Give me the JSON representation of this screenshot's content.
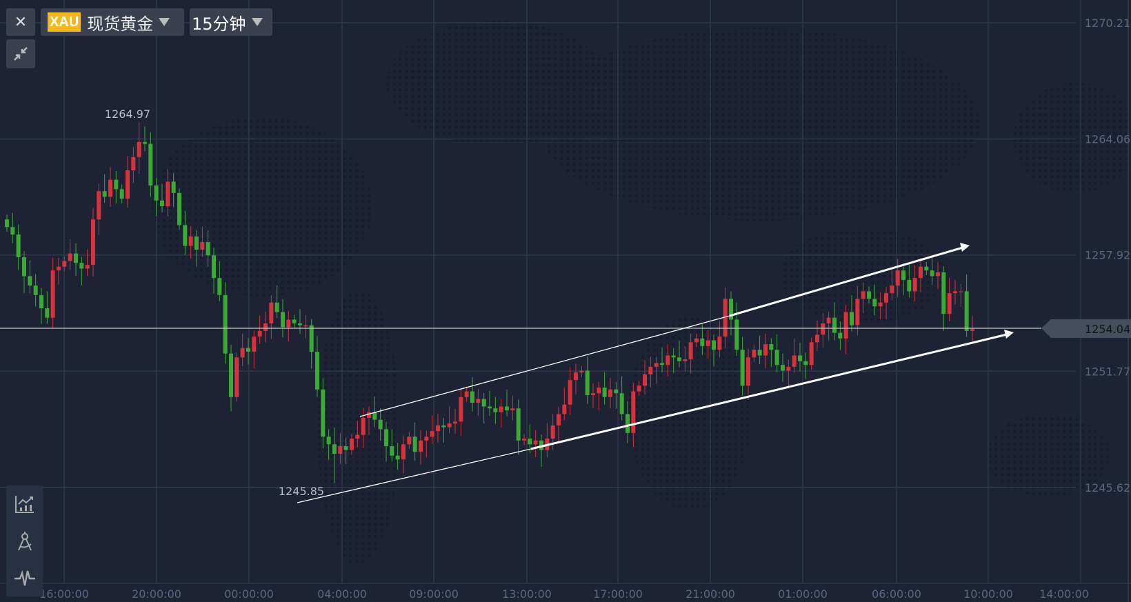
{
  "toolbar": {
    "close_icon": "close-icon",
    "collapse_icon": "collapse-arrows-icon",
    "symbol_code": "XAU",
    "symbol_name": "现货黄金",
    "interval": "15分钟"
  },
  "tools": [
    "indicator-chart-icon",
    "compass-drawing-icon",
    "pulse-wave-icon"
  ],
  "colors": {
    "background": "#1d2335",
    "up": "#d8323c",
    "down": "#3aaa35",
    "grid": "#2f3749",
    "axis_text": "#5d6680"
  },
  "chart_data": {
    "type": "candlestick",
    "title": "",
    "y_ticks": [
      "1270.21",
      "1264.06",
      "1257.92",
      "1251.77",
      "1245.62"
    ],
    "ylim": [
      1243.5,
      1271.4
    ],
    "x_ticks": [
      "16:00:00",
      "20:00:00",
      "00:00:00",
      "04:00:00",
      "09:00:00",
      "13:00:00",
      "17:00:00",
      "21:00:00",
      "01:00:00",
      "06:00:00",
      "10:00:00",
      "14:00:00"
    ],
    "current_price": "1254.04",
    "high_label": "1264.97",
    "low_label": "1245.85",
    "up_color_convention": "red up / green down",
    "closes": [
      1259.4,
      1259.0,
      1257.8,
      1256.8,
      1256.3,
      1255.8,
      1255.1,
      1254.6,
      1257.1,
      1257.3,
      1257.6,
      1258.0,
      1257.5,
      1257.2,
      1257.4,
      1259.8,
      1261.3,
      1261.0,
      1261.9,
      1261.4,
      1260.9,
      1262.4,
      1263.1,
      1263.9,
      1263.8,
      1261.6,
      1260.8,
      1260.5,
      1261.8,
      1261.2,
      1259.5,
      1258.4,
      1258.9,
      1258.2,
      1258.6,
      1257.9,
      1256.7,
      1255.8,
      1252.7,
      1250.4,
      1252.5,
      1253.0,
      1252.8,
      1253.6,
      1253.9,
      1254.3,
      1255.4,
      1254.9,
      1254.1,
      1254.5,
      1254.3,
      1254.2,
      1254.2,
      1252.8,
      1250.8,
      1248.3,
      1247.9,
      1247.4,
      1247.8,
      1247.6,
      1248.2,
      1248.4,
      1249.3,
      1249.6,
      1249.2,
      1248.7,
      1247.8,
      1247.3,
      1247.1,
      1247.9,
      1248.3,
      1247.5,
      1248.1,
      1248.3,
      1248.6,
      1248.9,
      1248.8,
      1249.0,
      1249.1,
      1250.4,
      1250.7,
      1250.1,
      1250.3,
      1249.9,
      1249.8,
      1249.6,
      1249.9,
      1249.7,
      1249.8,
      1248.1,
      1248.2,
      1247.9,
      1248.1,
      1247.6,
      1248.2,
      1248.9,
      1249.5,
      1250.0,
      1251.3,
      1251.7,
      1251.8,
      1250.5,
      1250.6,
      1250.9,
      1250.4,
      1250.8,
      1250.6,
      1249.5,
      1248.5,
      1250.7,
      1251.0,
      1251.6,
      1252.0,
      1252.2,
      1252.1,
      1252.6,
      1252.5,
      1252.3,
      1252.4,
      1253.3,
      1253.5,
      1253.1,
      1253.4,
      1252.9,
      1253.6,
      1255.6,
      1254.5,
      1252.9,
      1251.0,
      1252.5,
      1252.9,
      1252.6,
      1253.2,
      1252.9,
      1252.1,
      1251.8,
      1252.0,
      1252.6,
      1252.3,
      1252.1,
      1253.3,
      1253.7,
      1254.3,
      1254.6,
      1253.8,
      1253.5,
      1254.9,
      1254.2,
      1255.6,
      1256.0,
      1255.6,
      1255.2,
      1255.4,
      1255.9,
      1256.3,
      1257.1,
      1256.6,
      1256.0,
      1256.7,
      1257.3,
      1257.1,
      1256.8,
      1257.0,
      1254.8,
      1255.9,
      1256.0,
      1256.0,
      1253.9,
      1254.0
    ],
    "trendlines": [
      {
        "from": [
          "04:00:00 +0.7h",
          1249.4
        ],
        "to": [
          "09:15",
          1258.4
        ]
      },
      {
        "from": [
          "02:30",
          1244.9
        ],
        "to": [
          "11:30",
          1253.8
        ]
      }
    ]
  }
}
